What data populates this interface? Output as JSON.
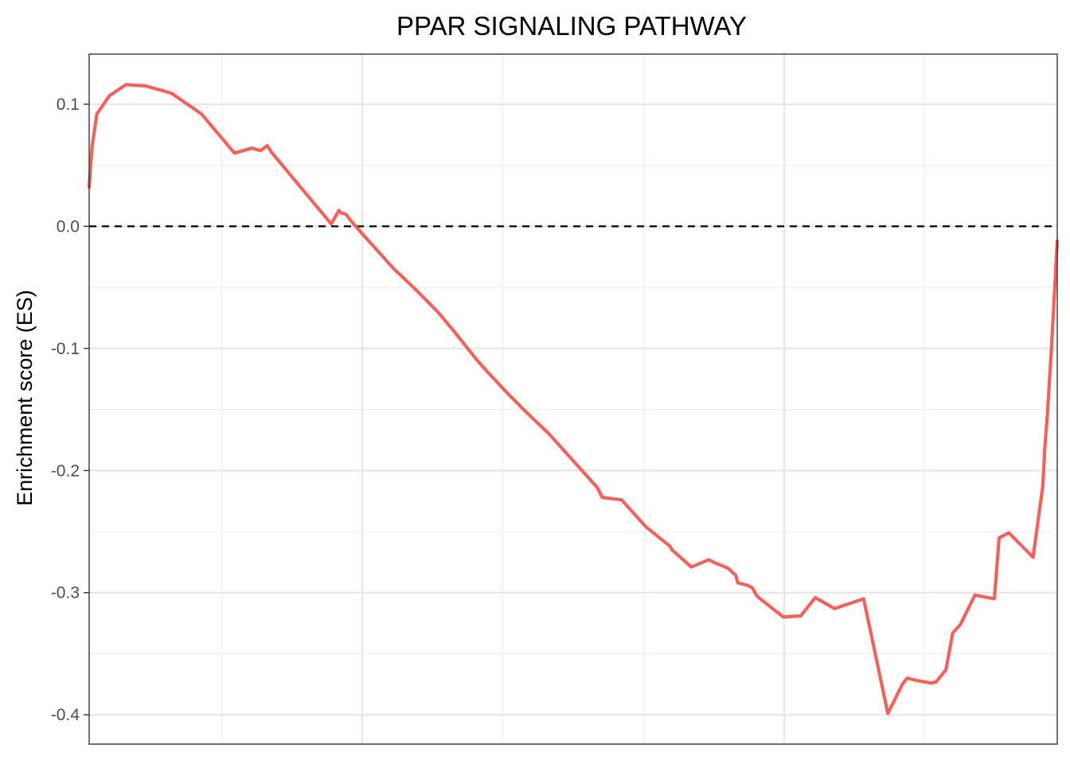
{
  "chart_data": {
    "type": "line",
    "title": "PPAR SIGNALING PATHWAY",
    "xlabel": "",
    "ylabel": "Enrichment score (ES)",
    "xlim": [
      0,
      1
    ],
    "ylim": [
      -0.424,
      0.141
    ],
    "yticks": [
      {
        "value": 0.1,
        "label": "0.1"
      },
      {
        "value": 0.0,
        "label": "0.0"
      },
      {
        "value": -0.1,
        "label": "-0.1"
      },
      {
        "value": -0.2,
        "label": "-0.2"
      },
      {
        "value": -0.3,
        "label": "-0.3"
      },
      {
        "value": -0.4,
        "label": "-0.4"
      }
    ],
    "y_minor_gridlines": [
      0.05,
      -0.05,
      -0.15,
      -0.25,
      -0.35
    ],
    "x_major_gridlines": [
      0.282,
      0.718
    ],
    "x_minor_gridlines": [
      0.137,
      0.427,
      0.573,
      0.863
    ],
    "grid": true,
    "legend": "none",
    "hline": {
      "value": 0,
      "style": "dashed",
      "color": "#000000"
    },
    "line_color": "#f0625a",
    "series": [
      {
        "x": [
          0.0,
          0.003,
          0.008,
          0.021,
          0.038,
          0.058,
          0.085,
          0.116,
          0.15,
          0.168,
          0.177,
          0.184,
          0.189,
          0.25,
          0.258,
          0.26,
          0.265,
          0.27,
          0.282,
          0.315,
          0.335,
          0.36,
          0.378,
          0.4,
          0.41,
          0.43,
          0.45,
          0.475,
          0.5,
          0.525,
          0.53,
          0.55,
          0.575,
          0.6,
          0.602,
          0.605,
          0.622,
          0.64,
          0.645,
          0.66,
          0.668,
          0.67,
          0.68,
          0.685,
          0.69,
          0.717,
          0.735,
          0.75,
          0.77,
          0.8,
          0.825,
          0.84,
          0.845,
          0.855,
          0.87,
          0.875,
          0.878,
          0.885,
          0.892,
          0.9,
          0.915,
          0.935,
          0.94,
          0.95,
          0.975,
          0.985,
          0.987,
          0.99,
          0.994,
          1.0
        ],
        "y": [
          0.032,
          0.065,
          0.092,
          0.107,
          0.116,
          0.115,
          0.109,
          0.092,
          0.06,
          0.064,
          0.062,
          0.066,
          0.06,
          0.002,
          0.013,
          0.011,
          0.01,
          0.005,
          -0.006,
          -0.035,
          -0.05,
          -0.07,
          -0.087,
          -0.109,
          -0.118,
          -0.135,
          -0.151,
          -0.17,
          -0.192,
          -0.214,
          -0.222,
          -0.224,
          -0.246,
          -0.262,
          -0.265,
          -0.267,
          -0.279,
          -0.273,
          -0.275,
          -0.28,
          -0.286,
          -0.292,
          -0.294,
          -0.296,
          -0.303,
          -0.32,
          -0.319,
          -0.304,
          -0.313,
          -0.305,
          -0.399,
          -0.375,
          -0.37,
          -0.372,
          -0.374,
          -0.373,
          -0.37,
          -0.363,
          -0.333,
          -0.326,
          -0.302,
          -0.305,
          -0.255,
          -0.251,
          -0.271,
          -0.213,
          -0.183,
          -0.152,
          -0.1,
          -0.012
        ]
      }
    ]
  }
}
